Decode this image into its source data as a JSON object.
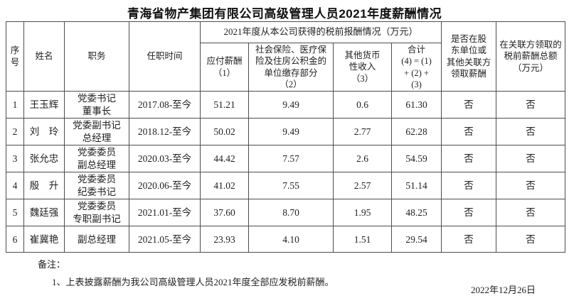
{
  "title": "青海省物产集团有限公司高级管理人员2021年度薪酬情况",
  "table": {
    "headers": {
      "index": "序\n号",
      "name": "姓名",
      "position": "职务",
      "tenure": "任职时间",
      "pretax_group": "2021年度从本公司获得的税前报酬情况（万元）",
      "payable": "应付薪酬\n（1）",
      "insurance": "社会保险、医疗保\n险及住房公积金的\n单位缴存部分\n（2）",
      "other_income": "其他货币\n性收入\n（3）",
      "total": "合计\n(4) = (1)\n+ (2) +\n(3)",
      "related_party": "是否在股\n东单位或\n其他关联方\n领取薪酬",
      "related_total": "在关联方领取的\n税前薪酬总额\n（万元）"
    },
    "rows": [
      {
        "index": "1",
        "name": "王玉辉",
        "position": "党委书记\n董事长",
        "tenure": "2017.08-至今",
        "payable": "51.21",
        "insurance": "9.49",
        "other_income": "0.6",
        "total": "61.30",
        "related_party": "否",
        "related_total": "否"
      },
      {
        "index": "2",
        "name": "刘　玲",
        "position": "党委副书记\n总经理",
        "tenure": "2018.12-至今",
        "payable": "50.02",
        "insurance": "9.49",
        "other_income": "2.77",
        "total": "62.28",
        "related_party": "否",
        "related_total": "否"
      },
      {
        "index": "3",
        "name": "张允忠",
        "position": "党委委员\n副总经理",
        "tenure": "2020.03-至今",
        "payable": "44.42",
        "insurance": "7.57",
        "other_income": "2.6",
        "total": "54.59",
        "related_party": "否",
        "related_total": "否"
      },
      {
        "index": "4",
        "name": "殷　升",
        "position": "党委委员\n纪委书记",
        "tenure": "2020.06-至今",
        "payable": "41.02",
        "insurance": "7.55",
        "other_income": "2.57",
        "total": "51.14",
        "related_party": "否",
        "related_total": "否"
      },
      {
        "index": "5",
        "name": "魏廷强",
        "position": "党委委员\n专职副书记",
        "tenure": "2021.01-至今",
        "payable": "37.60",
        "insurance": "8.70",
        "other_income": "1.95",
        "total": "48.25",
        "related_party": "否",
        "related_total": "否"
      },
      {
        "index": "6",
        "name": "崔冀艳",
        "position": "副总经理",
        "tenure": "2021.05-至今",
        "payable": "23.93",
        "insurance": "4.10",
        "other_income": "1.51",
        "total": "29.54",
        "related_party": "否",
        "related_total": "否"
      }
    ]
  },
  "notes": {
    "label": "备注：",
    "items": [
      "1、上表披露薪酬为我公司高级管理人员2021年度全部应发税前薪酬。"
    ]
  },
  "date": "2022年12月26日"
}
